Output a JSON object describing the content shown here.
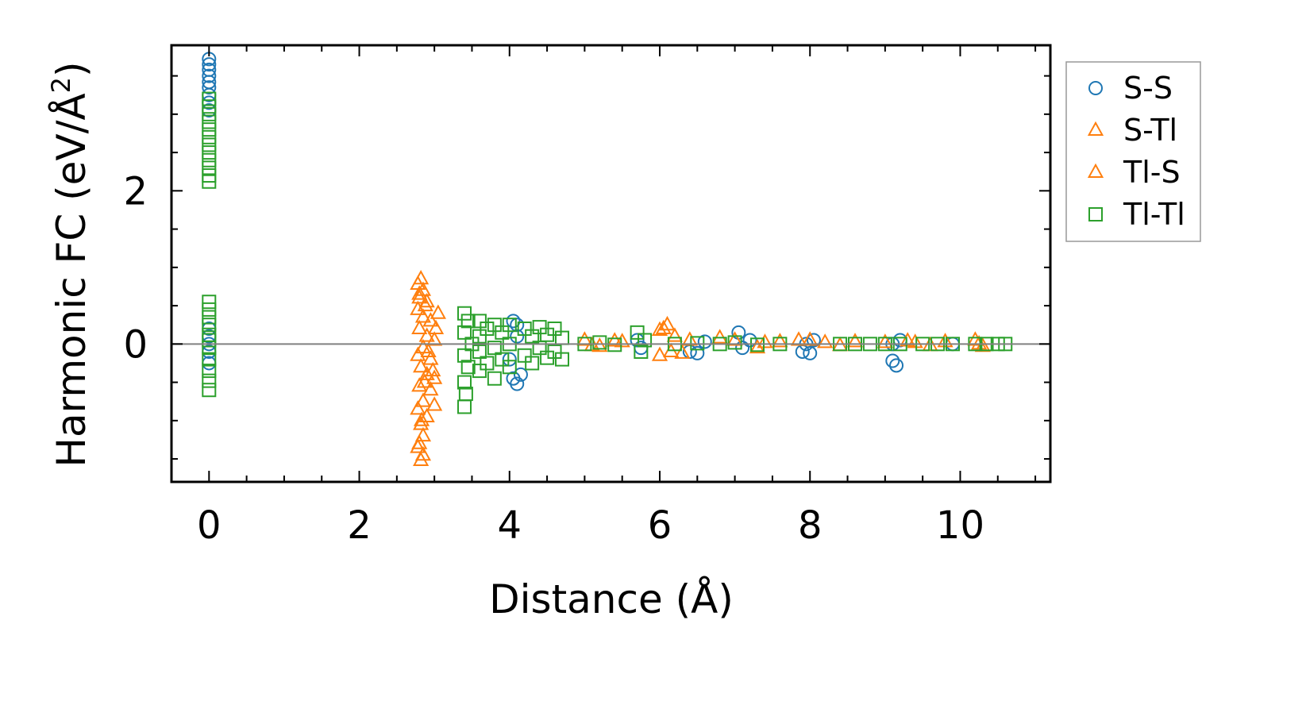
{
  "chart_data": {
    "type": "scatter",
    "title": "",
    "xlabel": "Distance (Å)",
    "ylabel_main": "Harmonic FC (eV/Å",
    "ylabel_sup": "2",
    "ylabel_close": ")",
    "xlim": [
      -0.5,
      11.2
    ],
    "ylim": [
      -1.8,
      3.9
    ],
    "xticks": [
      0,
      2,
      4,
      6,
      8,
      10
    ],
    "xtick_labels": [
      "0",
      "2",
      "4",
      "6",
      "8",
      "10"
    ],
    "yticks": [
      0,
      2
    ],
    "ytick_labels": [
      "0",
      "2"
    ],
    "grid": false,
    "zero_line": true,
    "legend_position": "outside-right",
    "colors": {
      "blue": "#1f77b4",
      "orange": "#ff7f0e",
      "green": "#2ca02c",
      "zero_line": "#808080"
    },
    "series": [
      {
        "name": "S-S",
        "marker": "circle",
        "color": "#1f77b4",
        "points": [
          [
            0,
            3.72
          ],
          [
            0,
            3.65
          ],
          [
            0,
            3.58
          ],
          [
            0,
            3.5
          ],
          [
            0,
            3.42
          ],
          [
            0,
            3.35
          ],
          [
            0,
            3.25
          ],
          [
            0,
            3.15
          ],
          [
            0,
            3.05
          ],
          [
            0,
            0.2
          ],
          [
            0,
            0.1
          ],
          [
            0,
            0.0
          ],
          [
            0,
            -0.1
          ],
          [
            0,
            -0.25
          ],
          [
            4.05,
            0.3
          ],
          [
            4.1,
            0.25
          ],
          [
            4.05,
            -0.45
          ],
          [
            4.1,
            -0.52
          ],
          [
            4.15,
            -0.4
          ],
          [
            4.1,
            0.1
          ],
          [
            4.0,
            -0.2
          ],
          [
            5.7,
            0.05
          ],
          [
            5.75,
            -0.05
          ],
          [
            6.4,
            -0.1
          ],
          [
            6.5,
            -0.12
          ],
          [
            6.6,
            0.03
          ],
          [
            7.05,
            0.15
          ],
          [
            7.1,
            -0.05
          ],
          [
            7.2,
            0.05
          ],
          [
            7.9,
            -0.1
          ],
          [
            7.95,
            0.0
          ],
          [
            8.0,
            -0.12
          ],
          [
            8.05,
            0.05
          ],
          [
            9.1,
            -0.22
          ],
          [
            9.15,
            -0.28
          ],
          [
            9.1,
            0.0
          ],
          [
            9.2,
            0.05
          ],
          [
            9.9,
            0.0
          ]
        ]
      },
      {
        "name": "S-Tl",
        "marker": "triangle",
        "color": "#ff7f0e",
        "points": [
          [
            2.78,
            0.78
          ],
          [
            2.82,
            0.85
          ],
          [
            2.85,
            0.7
          ],
          [
            2.8,
            0.6
          ],
          [
            2.9,
            0.55
          ],
          [
            2.78,
            0.45
          ],
          [
            2.85,
            0.35
          ],
          [
            2.95,
            0.3
          ],
          [
            2.8,
            0.2
          ],
          [
            2.9,
            0.1
          ],
          [
            3.0,
            0.05
          ],
          [
            2.85,
            -0.05
          ],
          [
            2.78,
            -0.15
          ],
          [
            2.95,
            -0.2
          ],
          [
            2.82,
            -0.3
          ],
          [
            2.9,
            -0.4
          ],
          [
            2.8,
            -0.55
          ],
          [
            2.95,
            -0.6
          ],
          [
            2.85,
            -0.75
          ],
          [
            2.78,
            -0.85
          ],
          [
            2.9,
            -0.95
          ],
          [
            2.82,
            -1.05
          ],
          [
            2.85,
            -1.2
          ],
          [
            2.8,
            -1.3
          ],
          [
            2.85,
            -1.45
          ],
          [
            2.82,
            -1.52
          ],
          [
            3.0,
            -0.45
          ],
          [
            3.05,
            0.4
          ],
          [
            3.0,
            -0.8
          ],
          [
            5.0,
            0.05
          ],
          [
            5.2,
            -0.03
          ],
          [
            5.4,
            0.04
          ],
          [
            6.0,
            0.18
          ],
          [
            6.1,
            0.25
          ],
          [
            6.2,
            0.1
          ],
          [
            6.3,
            -0.12
          ],
          [
            6.0,
            -0.15
          ],
          [
            6.8,
            0.08
          ],
          [
            7.0,
            0.05
          ],
          [
            7.3,
            -0.05
          ],
          [
            7.6,
            0.03
          ],
          [
            8.0,
            0.05
          ],
          [
            8.2,
            0.02
          ],
          [
            8.6,
            0.03
          ],
          [
            9.0,
            0.02
          ],
          [
            9.3,
            0.04
          ],
          [
            9.6,
            -0.02
          ],
          [
            9.8,
            0.03
          ],
          [
            10.2,
            0.05
          ],
          [
            10.3,
            -0.03
          ]
        ]
      },
      {
        "name": "Tl-S",
        "marker": "triangle",
        "color": "#ff7f0e",
        "points": [
          [
            2.8,
            0.65
          ],
          [
            2.88,
            0.5
          ],
          [
            2.92,
            -0.1
          ],
          [
            2.87,
            -0.5
          ],
          [
            2.83,
            -1.0
          ],
          [
            2.78,
            -1.35
          ],
          [
            3.02,
            0.2
          ],
          [
            2.98,
            -0.35
          ],
          [
            5.1,
            -0.02
          ],
          [
            5.5,
            0.03
          ],
          [
            6.05,
            0.2
          ],
          [
            6.15,
            -0.1
          ],
          [
            6.4,
            0.05
          ],
          [
            7.4,
            0.02
          ],
          [
            7.85,
            0.05
          ],
          [
            8.4,
            -0.02
          ],
          [
            9.4,
            0.02
          ],
          [
            10.25,
            0.0
          ]
        ]
      },
      {
        "name": "Tl-Tl",
        "marker": "square",
        "color": "#2ca02c",
        "points": [
          [
            0,
            3.2
          ],
          [
            0,
            3.1
          ],
          [
            0,
            3.0
          ],
          [
            0,
            2.9
          ],
          [
            0,
            2.8
          ],
          [
            0,
            2.7
          ],
          [
            0,
            2.6
          ],
          [
            0,
            2.5
          ],
          [
            0,
            2.4
          ],
          [
            0,
            2.3
          ],
          [
            0,
            2.2
          ],
          [
            0,
            2.12
          ],
          [
            0,
            0.55
          ],
          [
            0,
            0.45
          ],
          [
            0,
            0.35
          ],
          [
            0,
            0.25
          ],
          [
            0,
            0.12
          ],
          [
            0,
            0.05
          ],
          [
            0,
            -0.05
          ],
          [
            0,
            -0.2
          ],
          [
            0,
            -0.35
          ],
          [
            0,
            -0.48
          ],
          [
            0,
            -0.6
          ],
          [
            3.4,
            0.4
          ],
          [
            3.45,
            0.3
          ],
          [
            3.4,
            0.15
          ],
          [
            3.5,
            0.0
          ],
          [
            3.4,
            -0.15
          ],
          [
            3.45,
            -0.3
          ],
          [
            3.4,
            -0.5
          ],
          [
            3.42,
            -0.65
          ],
          [
            3.4,
            -0.82
          ],
          [
            3.6,
            0.3
          ],
          [
            3.6,
            0.1
          ],
          [
            3.6,
            -0.1
          ],
          [
            3.6,
            -0.35
          ],
          [
            3.7,
            0.2
          ],
          [
            3.7,
            -0.25
          ],
          [
            3.8,
            0.25
          ],
          [
            3.8,
            -0.05
          ],
          [
            3.8,
            -0.45
          ],
          [
            3.9,
            0.15
          ],
          [
            3.9,
            -0.2
          ],
          [
            4.0,
            0.25
          ],
          [
            4.0,
            0.0
          ],
          [
            4.0,
            -0.3
          ],
          [
            4.2,
            0.2
          ],
          [
            4.2,
            -0.15
          ],
          [
            4.3,
            0.1
          ],
          [
            4.3,
            -0.25
          ],
          [
            4.4,
            0.22
          ],
          [
            4.4,
            -0.05
          ],
          [
            4.5,
            0.12
          ],
          [
            4.5,
            -0.18
          ],
          [
            4.6,
            0.2
          ],
          [
            4.6,
            -0.1
          ],
          [
            4.7,
            0.08
          ],
          [
            4.7,
            -0.2
          ],
          [
            5.0,
            0.0
          ],
          [
            5.2,
            0.02
          ],
          [
            5.4,
            -0.01
          ],
          [
            5.7,
            0.15
          ],
          [
            5.75,
            -0.1
          ],
          [
            5.8,
            0.05
          ],
          [
            6.2,
            0.0
          ],
          [
            6.5,
            0.01
          ],
          [
            6.8,
            0.0
          ],
          [
            7.0,
            0.02
          ],
          [
            7.3,
            -0.01
          ],
          [
            7.6,
            0.0
          ],
          [
            8.4,
            0.0
          ],
          [
            8.6,
            0.0
          ],
          [
            8.8,
            0.0
          ],
          [
            9.0,
            0.0
          ],
          [
            9.2,
            0.0
          ],
          [
            9.5,
            0.0
          ],
          [
            9.7,
            0.0
          ],
          [
            9.9,
            0.0
          ],
          [
            10.2,
            0.0
          ],
          [
            10.35,
            0.0
          ],
          [
            10.5,
            0.0
          ],
          [
            10.6,
            0.0
          ]
        ]
      }
    ]
  }
}
